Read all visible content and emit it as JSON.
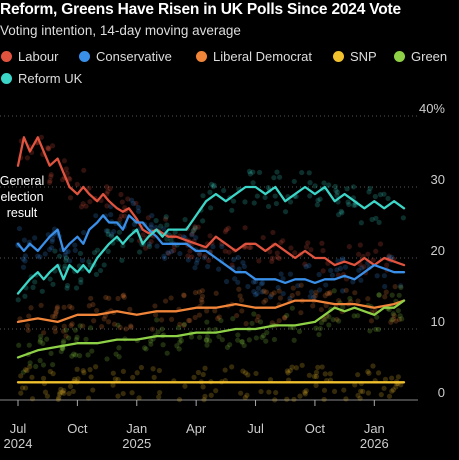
{
  "header": {
    "title": "Reform, Greens Have Risen in UK Polls Since 2024 Vote",
    "subtitle": "Voting intention, 14-day moving average"
  },
  "chart_data": {
    "type": "line",
    "title": "Reform, Greens Have Risen in UK Polls Since 2024 Vote",
    "subtitle": "Voting intention, 14-day moving average",
    "ylim": [
      0,
      40
    ],
    "y_ticks": [
      0,
      10,
      20,
      30,
      40
    ],
    "y_tick_labels": [
      "0",
      "10",
      "20",
      "30",
      "40%"
    ],
    "x_ticks": [
      "Jul\n2024",
      "Oct",
      "Jan\n2025",
      "Apr",
      "Jul",
      "Oct",
      "Jan\n2026"
    ],
    "x_tick_months": [
      0,
      3,
      6,
      9,
      12,
      15,
      18
    ],
    "grid": true,
    "legend_position": "top",
    "annotation": "General\nelection\nresult",
    "x_unit": "months since Jul 2024",
    "series": [
      {
        "name": "Labour",
        "color": "#e0533f",
        "x": [
          0,
          0.3,
          0.6,
          1,
          1.3,
          1.6,
          2,
          2.3,
          2.6,
          3,
          3.3,
          3.6,
          4,
          4.3,
          4.6,
          5,
          5.3,
          5.6,
          6,
          6.3,
          6.6,
          7,
          7.3,
          7.6,
          8,
          8.5,
          9,
          9.5,
          10,
          10.5,
          11,
          11.5,
          12,
          12.5,
          13,
          13.5,
          14,
          14.5,
          15,
          15.5,
          16,
          16.5,
          17,
          17.5,
          18,
          18.5,
          19,
          19.5
        ],
        "values": [
          33,
          37,
          35,
          37,
          35,
          33,
          34,
          32,
          30,
          29,
          30,
          29,
          28,
          29,
          28,
          27,
          26.5,
          27,
          25.5,
          24,
          23.5,
          24,
          23.5,
          23,
          23,
          22.5,
          22,
          21.5,
          23,
          22,
          21,
          22,
          22,
          21,
          22,
          21,
          20,
          21,
          20,
          20,
          19,
          19.5,
          19,
          20,
          19,
          20,
          19.5,
          19
        ]
      },
      {
        "name": "Conservative",
        "color": "#3a8fe8",
        "x": [
          0,
          0.3,
          0.6,
          1,
          1.3,
          1.6,
          2,
          2.3,
          2.6,
          3,
          3.3,
          3.6,
          4,
          4.3,
          4.6,
          5,
          5.3,
          5.6,
          6,
          6.3,
          6.6,
          7,
          7.3,
          7.6,
          8,
          8.5,
          9,
          9.5,
          10,
          10.5,
          11,
          11.5,
          12,
          12.5,
          13,
          13.5,
          14,
          14.5,
          15,
          15.5,
          16,
          16.5,
          17,
          17.5,
          18,
          18.5,
          19,
          19.5
        ],
        "values": [
          22,
          21,
          22,
          21,
          22,
          23,
          24,
          21,
          22,
          23,
          22,
          24,
          25,
          26,
          25,
          25,
          24,
          26,
          25,
          25,
          24,
          23,
          22,
          22,
          22,
          22,
          21,
          21,
          20,
          19,
          18,
          18,
          17,
          17,
          17,
          16.5,
          17,
          17,
          16.5,
          17,
          17,
          17.5,
          17,
          18,
          19,
          18.5,
          18,
          18
        ]
      },
      {
        "name": "Liberal Democrat",
        "color": "#f0853a",
        "x": [
          0,
          1,
          2,
          3,
          4,
          5,
          6,
          7,
          8,
          9,
          10,
          11,
          12,
          13,
          14,
          15,
          16,
          17,
          18,
          19,
          19.5
        ],
        "values": [
          11,
          11.5,
          11,
          12,
          12,
          12.5,
          12,
          12.5,
          12.5,
          13,
          13,
          13.5,
          13,
          13,
          14,
          14,
          13.5,
          13.5,
          13,
          13.5,
          14
        ]
      },
      {
        "name": "SNP",
        "color": "#f2c12e",
        "x": [
          0,
          2,
          4,
          6,
          8,
          10,
          12,
          14,
          16,
          18,
          19.5
        ],
        "values": [
          2.5,
          2.5,
          2.5,
          2.5,
          2.5,
          2.5,
          2.5,
          2.5,
          2.5,
          2.5,
          2.5
        ]
      },
      {
        "name": "Green",
        "color": "#8ed046",
        "x": [
          0,
          1,
          2,
          3,
          4,
          5,
          6,
          7,
          8,
          9,
          10,
          11,
          12,
          13,
          14,
          15,
          15.5,
          16,
          16.5,
          17,
          17.5,
          18,
          18.5,
          19,
          19.5
        ],
        "values": [
          6,
          7,
          7.5,
          8,
          8,
          8.5,
          8.5,
          9,
          9,
          9.5,
          9.5,
          10,
          10,
          10.5,
          10.5,
          11,
          12,
          13,
          12.5,
          13,
          12.5,
          12,
          13,
          13,
          14
        ]
      },
      {
        "name": "Reform UK",
        "color": "#3cd6c8",
        "x": [
          0,
          0.3,
          0.6,
          1,
          1.3,
          1.6,
          2,
          2.3,
          2.6,
          3,
          3.3,
          3.6,
          4,
          4.3,
          4.6,
          5,
          5.3,
          5.6,
          6,
          6.3,
          6.6,
          7,
          7.3,
          7.6,
          8,
          8.5,
          9,
          9.5,
          10,
          10.5,
          11,
          11.5,
          12,
          12.5,
          13,
          13.5,
          14,
          14.5,
          15,
          15.5,
          16,
          16.5,
          17,
          17.5,
          18,
          18.5,
          19,
          19.5
        ],
        "values": [
          15,
          16,
          17,
          18,
          17,
          18,
          19,
          17,
          19,
          18,
          19,
          18,
          20,
          21,
          22,
          23,
          22,
          23,
          24,
          22,
          23,
          24,
          23,
          24,
          24,
          24,
          26,
          28,
          29,
          28,
          29,
          30,
          30,
          29,
          30,
          28,
          29,
          30,
          29,
          30,
          28,
          29,
          28,
          27,
          28,
          27,
          28,
          27
        ]
      }
    ]
  }
}
